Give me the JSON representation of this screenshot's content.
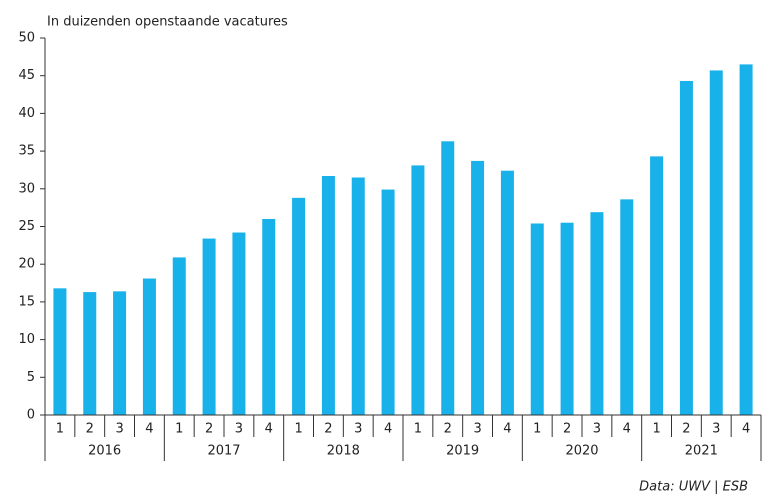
{
  "chart_data": {
    "type": "bar",
    "subtitle": "In duizenden openstaande vacatures",
    "source": "Data: UWV | ESB",
    "categories": [
      "1",
      "2",
      "3",
      "4",
      "1",
      "2",
      "3",
      "4",
      "1",
      "2",
      "3",
      "4",
      "1",
      "2",
      "3",
      "4",
      "1",
      "2",
      "3",
      "4",
      "1",
      "2",
      "3",
      "4"
    ],
    "years": [
      "2016",
      "2017",
      "2018",
      "2019",
      "2020",
      "2021"
    ],
    "values": [
      16.8,
      16.3,
      16.4,
      18.1,
      20.9,
      23.4,
      24.2,
      26.0,
      28.8,
      31.7,
      31.5,
      29.9,
      33.1,
      36.3,
      33.7,
      32.4,
      25.4,
      25.5,
      26.9,
      28.6,
      34.3,
      44.3,
      45.7,
      46.5
    ],
    "color": "#18b1e9",
    "ylim": [
      0,
      50
    ],
    "yticks": [
      0,
      5,
      10,
      15,
      20,
      25,
      30,
      35,
      40,
      45,
      50
    ],
    "grid": false
  }
}
